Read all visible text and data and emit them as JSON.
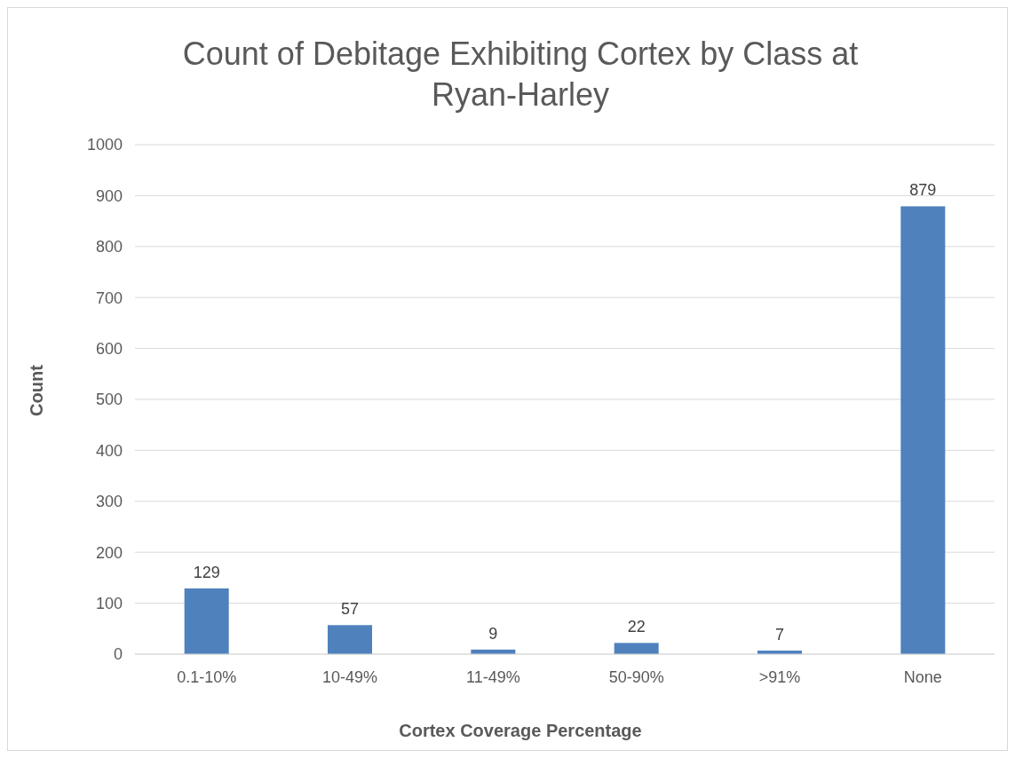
{
  "chart_data": {
    "type": "bar",
    "title": "Count of Debitage Exhibiting Cortex by Class at Ryan-Harley",
    "xlabel": "Cortex Coverage Percentage",
    "ylabel": "Count",
    "categories": [
      "0.1-10%",
      "10-49%",
      "11-49%",
      "50-90%",
      ">91%",
      "None"
    ],
    "values": [
      129,
      57,
      9,
      22,
      7,
      879
    ],
    "color": "#4f81bd",
    "ylim": [
      0,
      1000
    ],
    "yticks": [
      0,
      100,
      200,
      300,
      400,
      500,
      600,
      700,
      800,
      900,
      1000
    ],
    "grid": "y",
    "data_labels": true
  }
}
